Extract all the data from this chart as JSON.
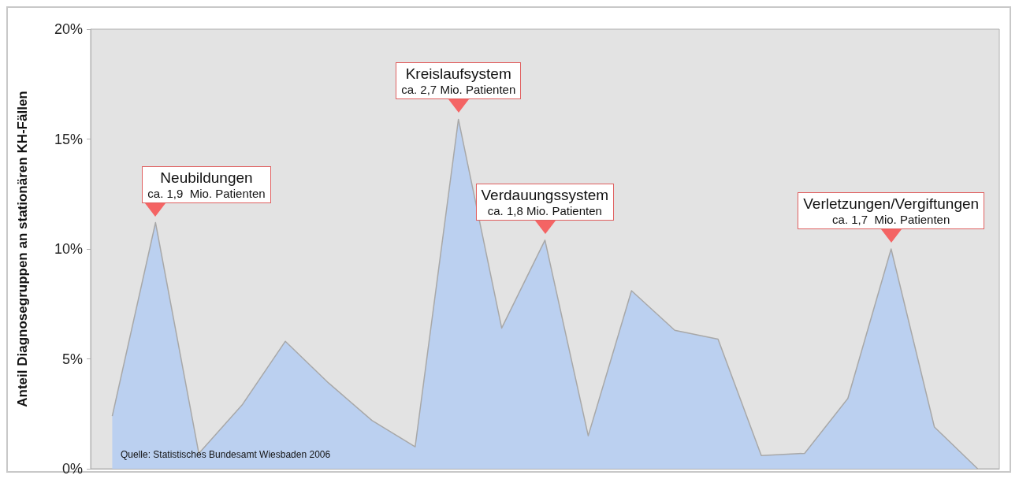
{
  "chart_data": {
    "type": "area",
    "ylabel": "Anteil Diagnosegruppen an stationären KH-Fällen",
    "categories": [
      null,
      null,
      null,
      null,
      null,
      null,
      null,
      null,
      null,
      null,
      null,
      null,
      null,
      null,
      null,
      null,
      null,
      null,
      null,
      null,
      null
    ],
    "series": [
      {
        "color": "#bbd0f0",
        "values": [
          2.4,
          11.2,
          0.7,
          2.9,
          5.8,
          3.9,
          2.2,
          1.0,
          15.9,
          6.4,
          10.4,
          1.5,
          8.1,
          6.3,
          5.9,
          0.6,
          0.7,
          3.2,
          10.0,
          1.9,
          0
        ]
      }
    ],
    "ylim": [
      0,
      20
    ],
    "yticks": [
      {
        "value": 0,
        "label": "0%"
      },
      {
        "value": 5,
        "label": "5%"
      },
      {
        "value": 10,
        "label": "10%"
      },
      {
        "value": 15,
        "label": "15%"
      },
      {
        "value": 20,
        "label": "20%"
      }
    ],
    "grid": false,
    "marker": "none",
    "annotations": [
      "Neubildungen\nca. 1,9  Mio. Patienten",
      "Kreislaufsystem\nca. 2,7 Mio. Patienten",
      "Verdauungssystem\nca. 1,8 Mio. Patienten",
      "Verletzungen/Vergiftungen\nca. 1,7  Mio. Patienten",
      "Quelle: Statistisches Bundesamt Wiesbaden 2006"
    ]
  }
}
